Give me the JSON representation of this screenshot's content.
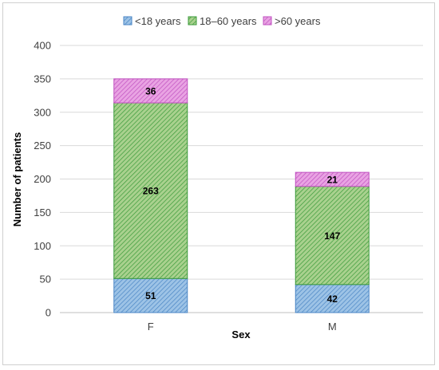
{
  "chart_data": {
    "type": "bar",
    "stacked": true,
    "categories": [
      "F",
      "M"
    ],
    "series": [
      {
        "name": "<18 years",
        "values": [
          51,
          42
        ],
        "color": "#9dc3e6",
        "edge": "#4a86c5"
      },
      {
        "name": "18–60 years",
        "values": [
          263,
          147
        ],
        "color": "#a9d18e",
        "edge": "#3a9a3a"
      },
      {
        "name": ">60 years",
        "values": [
          36,
          21
        ],
        "color": "#e9a3e3",
        "edge": "#c050c0"
      }
    ],
    "xlabel": "Sex",
    "ylabel": "Number of patients",
    "ylim": [
      0,
      400
    ],
    "yticks": [
      0,
      50,
      100,
      150,
      200,
      250,
      300,
      350,
      400
    ],
    "grid": true,
    "legend_position": "top"
  }
}
